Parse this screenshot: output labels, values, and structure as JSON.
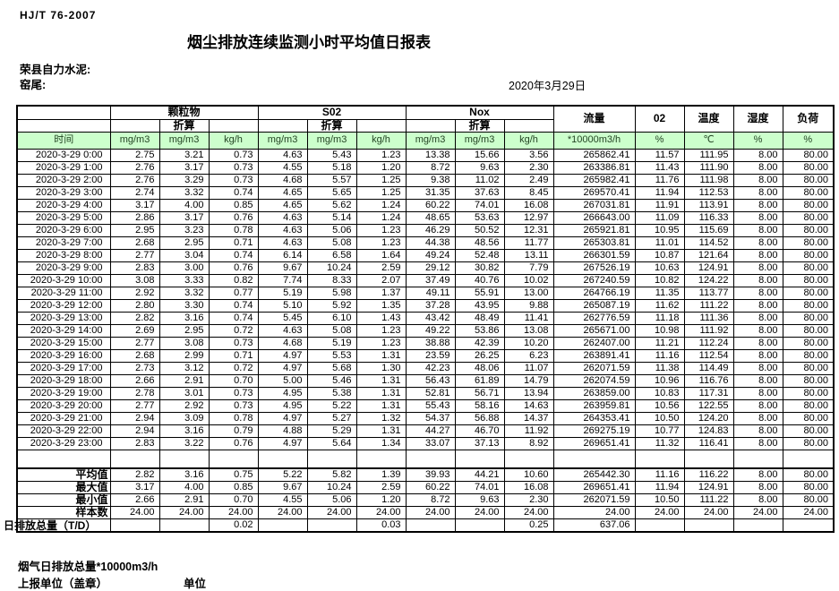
{
  "meta": {
    "standard": "HJ/T  76-2007",
    "title": "烟尘排放连续监测小时平均值日报表",
    "company": "荣县自力水泥:",
    "location": "窑尾:",
    "date": "2020年3月29日"
  },
  "colors": {
    "header_green": "#ccffcc",
    "border": "#000000"
  },
  "table": {
    "groups": {
      "time": "时间",
      "pm": "颗粒物",
      "so2": "S02",
      "nox": "Nox",
      "conv": "折算",
      "flow": "流量",
      "o2": "02",
      "temp": "温度",
      "humidity": "湿度",
      "load": "负荷"
    },
    "units": {
      "mgm3": "mg/m3",
      "kgh": "kg/h",
      "flow_unit": "*10000m3/h",
      "pct": "%",
      "celsius": "℃"
    },
    "rows": [
      {
        "time": "2020-3-29  0:00",
        "values": [
          "2.75",
          "3.21",
          "0.73",
          "4.63",
          "5.43",
          "1.23",
          "13.38",
          "15.66",
          "3.56",
          "265862.41",
          "11.57",
          "111.95",
          "8.00",
          "80.00"
        ]
      },
      {
        "time": "2020-3-29  1:00",
        "values": [
          "2.76",
          "3.17",
          "0.73",
          "4.55",
          "5.18",
          "1.20",
          "8.72",
          "9.63",
          "2.30",
          "263386.81",
          "11.43",
          "111.90",
          "8.00",
          "80.00"
        ]
      },
      {
        "time": "2020-3-29  2:00",
        "values": [
          "2.76",
          "3.29",
          "0.73",
          "4.68",
          "5.57",
          "1.25",
          "9.38",
          "11.02",
          "2.49",
          "265982.41",
          "11.76",
          "111.98",
          "8.00",
          "80.00"
        ]
      },
      {
        "time": "2020-3-29  3:00",
        "values": [
          "2.74",
          "3.32",
          "0.74",
          "4.65",
          "5.65",
          "1.25",
          "31.35",
          "37.63",
          "8.45",
          "269570.41",
          "11.94",
          "112.53",
          "8.00",
          "80.00"
        ]
      },
      {
        "time": "2020-3-29  4:00",
        "values": [
          "3.17",
          "4.00",
          "0.85",
          "4.65",
          "5.62",
          "1.24",
          "60.22",
          "74.01",
          "16.08",
          "267031.81",
          "11.91",
          "113.91",
          "8.00",
          "80.00"
        ]
      },
      {
        "time": "2020-3-29  5:00",
        "values": [
          "2.86",
          "3.17",
          "0.76",
          "4.63",
          "5.14",
          "1.24",
          "48.65",
          "53.63",
          "12.97",
          "266643.00",
          "11.09",
          "116.33",
          "8.00",
          "80.00"
        ]
      },
      {
        "time": "2020-3-29  6:00",
        "values": [
          "2.95",
          "3.23",
          "0.78",
          "4.63",
          "5.06",
          "1.23",
          "46.29",
          "50.52",
          "12.31",
          "265921.81",
          "10.95",
          "115.69",
          "8.00",
          "80.00"
        ]
      },
      {
        "time": "2020-3-29  7:00",
        "values": [
          "2.68",
          "2.95",
          "0.71",
          "4.63",
          "5.08",
          "1.23",
          "44.38",
          "48.56",
          "11.77",
          "265303.81",
          "11.01",
          "114.52",
          "8.00",
          "80.00"
        ]
      },
      {
        "time": "2020-3-29  8:00",
        "values": [
          "2.77",
          "3.04",
          "0.74",
          "6.14",
          "6.58",
          "1.64",
          "49.24",
          "52.48",
          "13.11",
          "266301.59",
          "10.87",
          "121.64",
          "8.00",
          "80.00"
        ]
      },
      {
        "time": "2020-3-29  9:00",
        "values": [
          "2.83",
          "3.00",
          "0.76",
          "9.67",
          "10.24",
          "2.59",
          "29.12",
          "30.82",
          "7.79",
          "267526.19",
          "10.63",
          "124.91",
          "8.00",
          "80.00"
        ]
      },
      {
        "time": "2020-3-29 10:00",
        "values": [
          "3.08",
          "3.33",
          "0.82",
          "7.74",
          "8.33",
          "2.07",
          "37.49",
          "40.76",
          "10.02",
          "267240.59",
          "10.82",
          "124.22",
          "8.00",
          "80.00"
        ]
      },
      {
        "time": "2020-3-29 11:00",
        "values": [
          "2.92",
          "3.32",
          "0.77",
          "5.19",
          "5.98",
          "1.37",
          "49.11",
          "55.91",
          "13.00",
          "264766.19",
          "11.35",
          "113.77",
          "8.00",
          "80.00"
        ]
      },
      {
        "time": "2020-3-29 12:00",
        "values": [
          "2.80",
          "3.30",
          "0.74",
          "5.10",
          "5.92",
          "1.35",
          "37.28",
          "43.95",
          "9.88",
          "265087.19",
          "11.62",
          "111.22",
          "8.00",
          "80.00"
        ]
      },
      {
        "time": "2020-3-29 13:00",
        "values": [
          "2.82",
          "3.16",
          "0.74",
          "5.45",
          "6.10",
          "1.43",
          "43.42",
          "48.49",
          "11.41",
          "262776.59",
          "11.18",
          "111.36",
          "8.00",
          "80.00"
        ]
      },
      {
        "time": "2020-3-29 14:00",
        "values": [
          "2.69",
          "2.95",
          "0.72",
          "4.63",
          "5.08",
          "1.23",
          "49.22",
          "53.86",
          "13.08",
          "265671.00",
          "10.98",
          "111.92",
          "8.00",
          "80.00"
        ]
      },
      {
        "time": "2020-3-29 15:00",
        "values": [
          "2.77",
          "3.08",
          "0.73",
          "4.68",
          "5.19",
          "1.23",
          "38.88",
          "42.39",
          "10.20",
          "262407.00",
          "11.21",
          "112.24",
          "8.00",
          "80.00"
        ]
      },
      {
        "time": "2020-3-29 16:00",
        "values": [
          "2.68",
          "2.99",
          "0.71",
          "4.97",
          "5.53",
          "1.31",
          "23.59",
          "26.25",
          "6.23",
          "263891.41",
          "11.16",
          "112.54",
          "8.00",
          "80.00"
        ]
      },
      {
        "time": "2020-3-29 17:00",
        "values": [
          "2.73",
          "3.12",
          "0.72",
          "4.97",
          "5.68",
          "1.30",
          "42.23",
          "48.06",
          "11.07",
          "262071.59",
          "11.38",
          "114.49",
          "8.00",
          "80.00"
        ]
      },
      {
        "time": "2020-3-29 18:00",
        "values": [
          "2.66",
          "2.91",
          "0.70",
          "5.00",
          "5.46",
          "1.31",
          "56.43",
          "61.89",
          "14.79",
          "262074.59",
          "10.96",
          "116.76",
          "8.00",
          "80.00"
        ]
      },
      {
        "time": "2020-3-29 19:00",
        "values": [
          "2.78",
          "3.01",
          "0.73",
          "4.95",
          "5.38",
          "1.31",
          "52.81",
          "56.71",
          "13.94",
          "263859.00",
          "10.83",
          "117.31",
          "8.00",
          "80.00"
        ]
      },
      {
        "time": "2020-3-29 20:00",
        "values": [
          "2.77",
          "2.92",
          "0.73",
          "4.95",
          "5.22",
          "1.31",
          "55.43",
          "58.16",
          "14.63",
          "263959.81",
          "10.56",
          "122.55",
          "8.00",
          "80.00"
        ]
      },
      {
        "time": "2020-3-29 21:00",
        "values": [
          "2.94",
          "3.09",
          "0.78",
          "4.97",
          "5.27",
          "1.32",
          "54.37",
          "56.88",
          "14.37",
          "264353.41",
          "10.50",
          "124.20",
          "8.00",
          "80.00"
        ]
      },
      {
        "time": "2020-3-29 22:00",
        "values": [
          "2.94",
          "3.16",
          "0.79",
          "4.88",
          "5.29",
          "1.31",
          "44.27",
          "46.70",
          "11.92",
          "269275.19",
          "10.77",
          "124.83",
          "8.00",
          "80.00"
        ]
      },
      {
        "time": "2020-3-29 23:00",
        "values": [
          "2.83",
          "3.22",
          "0.76",
          "4.97",
          "5.64",
          "1.34",
          "33.07",
          "37.13",
          "8.92",
          "269651.41",
          "11.32",
          "116.41",
          "8.00",
          "80.00"
        ]
      }
    ],
    "summary": [
      {
        "label": "平均值",
        "type": "avg",
        "values": [
          "2.82",
          "3.16",
          "0.75",
          "5.22",
          "5.82",
          "1.39",
          "39.93",
          "44.21",
          "10.60",
          "265442.30",
          "11.16",
          "116.22",
          "8.00",
          "80.00"
        ]
      },
      {
        "label": "最大值",
        "type": "max",
        "values": [
          "3.17",
          "4.00",
          "0.85",
          "9.67",
          "10.24",
          "2.59",
          "60.22",
          "74.01",
          "16.08",
          "269651.41",
          "11.94",
          "124.91",
          "8.00",
          "80.00"
        ]
      },
      {
        "label": "最小值",
        "type": "min",
        "values": [
          "2.66",
          "2.91",
          "0.70",
          "4.55",
          "5.06",
          "1.20",
          "8.72",
          "9.63",
          "2.30",
          "262071.59",
          "10.50",
          "111.22",
          "8.00",
          "80.00"
        ]
      },
      {
        "label": "样本数",
        "type": "count",
        "values": [
          "24.00",
          "24.00",
          "24.00",
          "24.00",
          "24.00",
          "24.00",
          "24.00",
          "24.00",
          "24.00",
          "24.00",
          "24.00",
          "24.00",
          "24.00",
          "24.00"
        ]
      },
      {
        "label": "日排放总量（T/D）",
        "type": "total",
        "values": [
          "",
          "",
          "0.02",
          "",
          "",
          "0.03",
          "",
          "",
          "0.25",
          "637.06",
          "",
          "",
          "",
          ""
        ]
      }
    ]
  },
  "footer": {
    "line1": "烟气日排放总量*10000m3/h",
    "line2": "上报单位（盖章）",
    "line3": "单位"
  }
}
